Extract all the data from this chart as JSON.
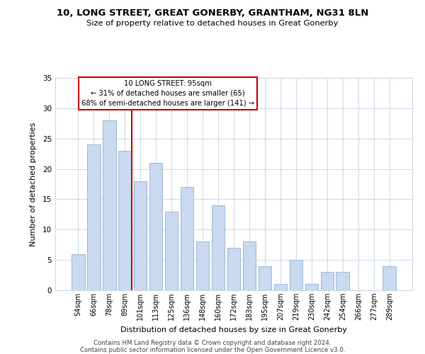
{
  "title": "10, LONG STREET, GREAT GONERBY, GRANTHAM, NG31 8LN",
  "subtitle": "Size of property relative to detached houses in Great Gonerby",
  "xlabel": "Distribution of detached houses by size in Great Gonerby",
  "ylabel": "Number of detached properties",
  "categories": [
    "54sqm",
    "66sqm",
    "78sqm",
    "89sqm",
    "101sqm",
    "113sqm",
    "125sqm",
    "136sqm",
    "148sqm",
    "160sqm",
    "172sqm",
    "183sqm",
    "195sqm",
    "207sqm",
    "219sqm",
    "230sqm",
    "242sqm",
    "254sqm",
    "266sqm",
    "277sqm",
    "289sqm"
  ],
  "values": [
    6,
    24,
    28,
    23,
    18,
    21,
    13,
    17,
    8,
    14,
    7,
    8,
    4,
    1,
    5,
    1,
    3,
    3,
    0,
    0,
    4
  ],
  "bar_color": "#c8d9f0",
  "bar_edge_color": "#a0b8d8",
  "highlight_index": 3,
  "highlight_line_color": "#cc0000",
  "ylim": [
    0,
    35
  ],
  "yticks": [
    0,
    5,
    10,
    15,
    20,
    25,
    30,
    35
  ],
  "annotation_box_text": "10 LONG STREET: 95sqm\n← 31% of detached houses are smaller (65)\n68% of semi-detached houses are larger (141) →",
  "annotation_box_edge_color": "#cc0000",
  "footer_line1": "Contains HM Land Registry data © Crown copyright and database right 2024.",
  "footer_line2": "Contains public sector information licensed under the Open Government Licence v3.0.",
  "background_color": "#ffffff",
  "grid_color": "#ccd8e8"
}
